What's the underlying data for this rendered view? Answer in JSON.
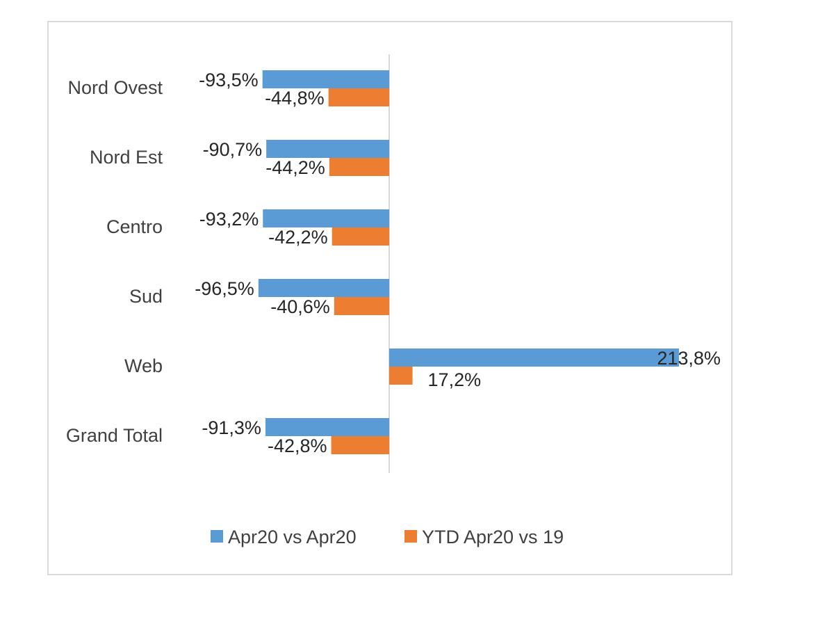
{
  "chart_data": {
    "type": "bar",
    "orientation": "horizontal",
    "categories": [
      "Nord Ovest",
      "Nord Est",
      "Centro",
      "Sud",
      "Web",
      "Grand Total"
    ],
    "series": [
      {
        "name": "Apr20 vs Apr20",
        "color": "#5b9bd5",
        "values": [
          -93.5,
          -90.7,
          -93.2,
          -96.5,
          213.8,
          -91.3
        ],
        "labels": [
          "-93,5%",
          "-90,7%",
          "-93,2%",
          "-96,5%",
          "213,8%",
          "-91,3%"
        ]
      },
      {
        "name": "YTD Apr20 vs 19",
        "color": "#ed7d31",
        "values": [
          -44.8,
          -44.2,
          -42.2,
          -40.6,
          17.2,
          -42.8
        ],
        "labels": [
          "-44,8%",
          "-44,2%",
          "-42,2%",
          "-40,6%",
          "17,2%",
          "-42,8%"
        ]
      }
    ],
    "axis_color": "#d9d9d9",
    "legend_position": "bottom",
    "grid": false
  }
}
